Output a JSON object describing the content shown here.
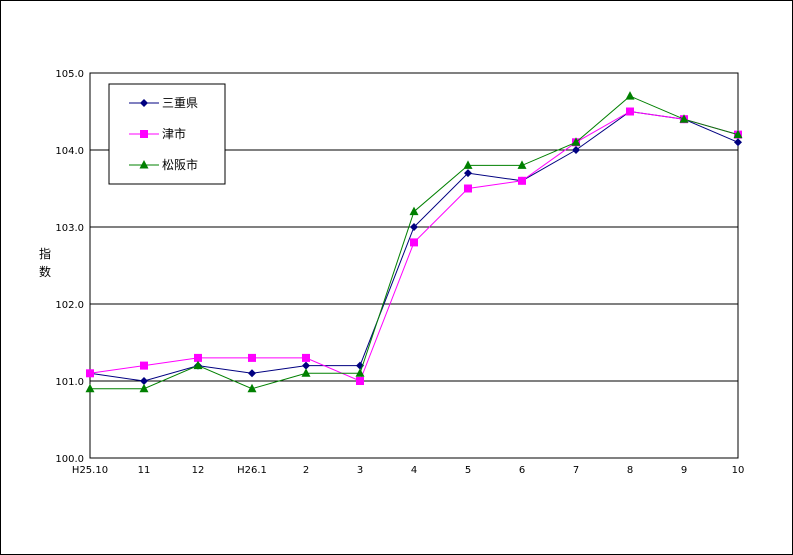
{
  "chart_data": {
    "type": "line",
    "title": "",
    "xlabel": "",
    "ylabel": "指数",
    "categories": [
      "H25.10",
      "11",
      "12",
      "H26.1",
      "2",
      "3",
      "4",
      "5",
      "6",
      "7",
      "8",
      "9",
      "10"
    ],
    "yticks": [
      "100.0",
      "101.0",
      "102.0",
      "103.0",
      "104.0",
      "105.0"
    ],
    "ylim": [
      100,
      105
    ],
    "grid": "horizontal",
    "legend_position": "top-left",
    "series": [
      {
        "name": "三重県",
        "color": "#000080",
        "marker": "diamond",
        "values": [
          101.1,
          101.0,
          101.2,
          101.1,
          101.2,
          101.2,
          103.0,
          103.7,
          103.6,
          104.0,
          104.5,
          104.4,
          104.1
        ]
      },
      {
        "name": "津市",
        "color": "#FF00FF",
        "marker": "square",
        "values": [
          101.1,
          101.2,
          101.3,
          101.3,
          101.3,
          101.0,
          102.8,
          103.5,
          103.6,
          104.1,
          104.5,
          104.4,
          104.2
        ]
      },
      {
        "name": "松阪市",
        "color": "#008000",
        "marker": "triangle",
        "values": [
          100.9,
          100.9,
          101.2,
          100.9,
          101.1,
          101.1,
          103.2,
          103.8,
          103.8,
          104.1,
          104.7,
          104.4,
          104.2
        ]
      }
    ]
  }
}
